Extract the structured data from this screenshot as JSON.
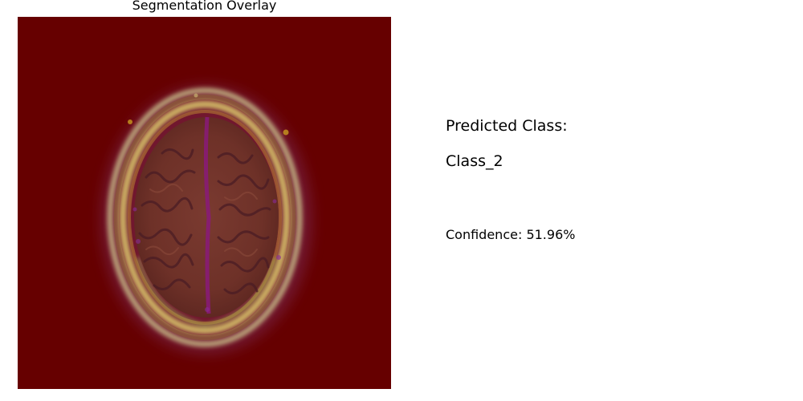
{
  "overlay_panel": {
    "title": "Segmentation Overlay",
    "image_subject": "brain-mri-axial-slice",
    "mask_color": "#660000"
  },
  "prediction": {
    "heading": "Predicted Class:",
    "class_name": "Class_2",
    "confidence_text": "Confidence: 51.96%"
  }
}
